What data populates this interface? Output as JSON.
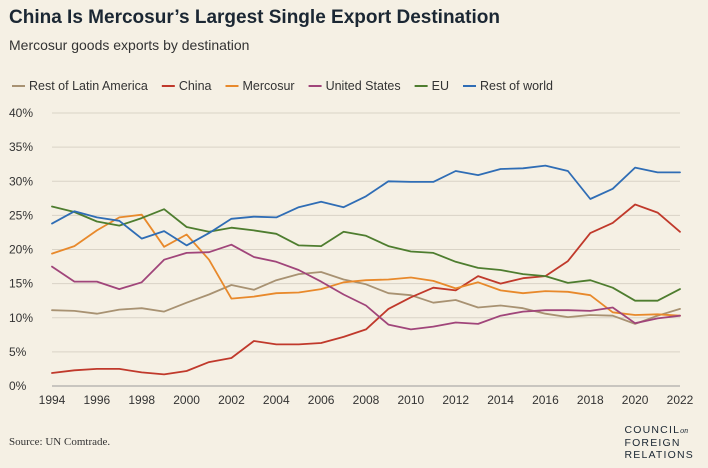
{
  "header": {
    "title": "China Is Mercosur’s Largest Single Export Destination",
    "subtitle": "Mercosur goods exports by destination"
  },
  "footer": {
    "source": "Source: UN Comtrade.",
    "logo_line1": "COUNCIL",
    "logo_small": "on",
    "logo_line2": "FOREIGN",
    "logo_line3": "RELATIONS"
  },
  "chart_data": {
    "type": "line",
    "title": "China Is Mercosur’s Largest Single Export Destination",
    "subtitle": "Mercosur goods exports by destination",
    "xlabel": "",
    "ylabel": "",
    "ylim": [
      0,
      40
    ],
    "yticks": [
      0,
      5,
      10,
      15,
      20,
      25,
      30,
      35,
      40
    ],
    "ytick_labels": [
      "0%",
      "5%",
      "10%",
      "15%",
      "20%",
      "25%",
      "30%",
      "35%",
      "40%"
    ],
    "xlim": [
      1994,
      2022
    ],
    "xticks": [
      1994,
      1996,
      1998,
      2000,
      2002,
      2004,
      2006,
      2008,
      2010,
      2012,
      2014,
      2016,
      2018,
      2020,
      2022
    ],
    "xtick_labels": [
      "1994",
      "1996",
      "1998",
      "2000",
      "2002",
      "2004",
      "2006",
      "2008",
      "2010",
      "2012",
      "2014",
      "2016",
      "2018",
      "2020",
      "2022"
    ],
    "grid": "horizontal",
    "legend_position": "top",
    "x": [
      1994,
      1995,
      1996,
      1997,
      1998,
      1999,
      2000,
      2001,
      2002,
      2003,
      2004,
      2005,
      2006,
      2007,
      2008,
      2009,
      2010,
      2011,
      2012,
      2013,
      2014,
      2015,
      2016,
      2017,
      2018,
      2019,
      2020,
      2021,
      2022
    ],
    "series": [
      {
        "name": "Rest of Latin America",
        "color": "#a89272",
        "values": [
          11.1,
          11.0,
          10.6,
          11.2,
          11.4,
          10.9,
          12.2,
          13.4,
          14.8,
          14.1,
          15.5,
          16.4,
          16.7,
          15.6,
          14.9,
          13.6,
          13.3,
          12.2,
          12.6,
          11.5,
          11.8,
          11.4,
          10.6,
          10.1,
          10.4,
          10.3,
          9.1,
          10.3,
          11.3
        ]
      },
      {
        "name": "China",
        "color": "#c0392b",
        "values": [
          1.9,
          2.3,
          2.5,
          2.5,
          2.0,
          1.7,
          2.2,
          3.5,
          4.1,
          6.6,
          6.1,
          6.1,
          6.3,
          7.2,
          8.3,
          11.3,
          13.0,
          14.4,
          14.0,
          16.1,
          15.0,
          15.8,
          16.1,
          18.3,
          22.4,
          23.9,
          26.6,
          25.4,
          22.6
        ]
      },
      {
        "name": "Mercosur",
        "color": "#e8892b",
        "values": [
          19.4,
          20.5,
          22.8,
          24.7,
          25.1,
          20.4,
          22.2,
          18.5,
          12.8,
          13.1,
          13.6,
          13.7,
          14.2,
          15.2,
          15.5,
          15.6,
          15.9,
          15.4,
          14.3,
          15.2,
          14.0,
          13.6,
          13.9,
          13.8,
          13.3,
          10.8,
          10.4,
          10.5,
          10.3
        ]
      },
      {
        "name": "United States",
        "color": "#a0457a",
        "values": [
          17.5,
          15.3,
          15.3,
          14.2,
          15.2,
          18.5,
          19.5,
          19.6,
          20.7,
          18.9,
          18.2,
          17.0,
          15.3,
          13.4,
          11.8,
          9.0,
          8.3,
          8.7,
          9.3,
          9.1,
          10.3,
          10.9,
          11.1,
          11.1,
          11.0,
          11.5,
          9.2,
          9.9,
          10.3
        ]
      },
      {
        "name": "EU",
        "color": "#4e7d2f",
        "values": [
          26.3,
          25.5,
          24.1,
          23.5,
          24.6,
          25.9,
          23.3,
          22.6,
          23.2,
          22.8,
          22.3,
          20.6,
          20.5,
          22.6,
          22.0,
          20.5,
          19.7,
          19.5,
          18.2,
          17.3,
          17.0,
          16.4,
          16.1,
          15.1,
          15.5,
          14.4,
          12.5,
          12.5,
          14.2
        ]
      },
      {
        "name": "Rest of world",
        "color": "#2f6db5",
        "values": [
          23.8,
          25.6,
          24.7,
          24.2,
          21.6,
          22.7,
          20.6,
          22.4,
          24.5,
          24.8,
          24.7,
          26.2,
          27.0,
          26.2,
          27.8,
          30.0,
          29.9,
          29.9,
          31.5,
          30.9,
          31.8,
          31.9,
          32.3,
          31.5,
          27.4,
          28.9,
          32.0,
          31.3,
          31.3
        ]
      }
    ]
  }
}
